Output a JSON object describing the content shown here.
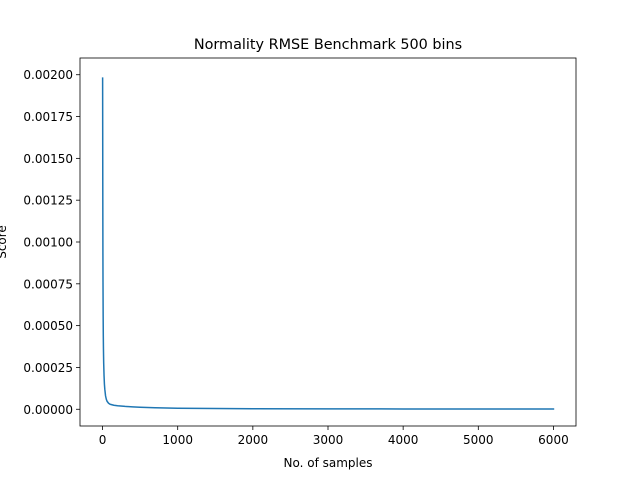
{
  "chart_data": {
    "type": "line",
    "title": "Normality RMSE Benchmark 500 bins",
    "xlabel": "No. of samples",
    "ylabel": "Score",
    "xlim": [
      -300,
      6300
    ],
    "ylim": [
      -0.0001,
      0.0021
    ],
    "xticks": [
      0,
      1000,
      2000,
      3000,
      4000,
      5000,
      6000
    ],
    "xtick_labels": [
      "0",
      "1000",
      "2000",
      "3000",
      "4000",
      "5000",
      "6000"
    ],
    "yticks": [
      0,
      0.00025,
      0.0005,
      0.00075,
      0.001,
      0.00125,
      0.0015,
      0.00175,
      0.002
    ],
    "ytick_labels": [
      "0.00000",
      "0.00025",
      "0.00050",
      "0.00075",
      "0.00100",
      "0.00125",
      "0.00150",
      "0.00175",
      "0.00200"
    ],
    "grid": false,
    "series": [
      {
        "color": "#1f77b4",
        "x": [
          1,
          2,
          3,
          4,
          5,
          6,
          8,
          10,
          12,
          15,
          20,
          25,
          30,
          40,
          50,
          60,
          80,
          100,
          150,
          200,
          300,
          400,
          500,
          700,
          1000,
          1500,
          2000,
          3000,
          4000,
          5000,
          6000
        ],
        "y": [
          0.00198,
          0.00168,
          0.00138,
          0.00112,
          0.00092,
          0.00076,
          0.00056,
          0.00044,
          0.00036,
          0.00028,
          0.0002,
          0.00015,
          0.00012,
          8e-05,
          6e-05,
          4.8e-05,
          3.6e-05,
          3e-05,
          2.4e-05,
          2.1e-05,
          1.7e-05,
          1.4e-05,
          1.2e-05,
          9e-06,
          6.5e-06,
          4.5e-06,
          3.5e-06,
          2.5e-06,
          2e-06,
          1.7e-06,
          1.5e-06
        ]
      }
    ]
  }
}
